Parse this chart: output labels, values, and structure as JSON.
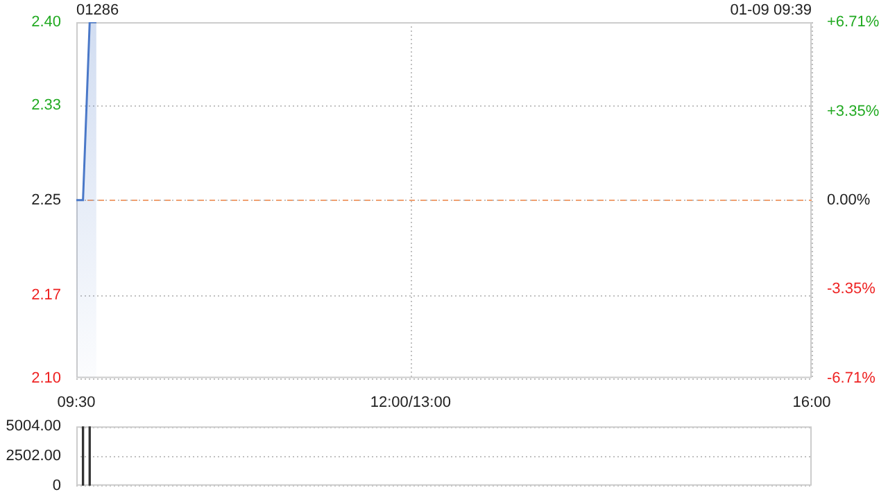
{
  "chart_data": [
    {
      "type": "area",
      "title": "01286",
      "annotations": [
        "01-09 09:39"
      ],
      "categories": [
        "09:30",
        null,
        null,
        null,
        null,
        null,
        null,
        null,
        null,
        null,
        null,
        null,
        null,
        null,
        null,
        null,
        null,
        null,
        null,
        null,
        null,
        null,
        null,
        null,
        null,
        null,
        null,
        null,
        null,
        null,
        null,
        null,
        null,
        null,
        null,
        null,
        null,
        null,
        null,
        null,
        null,
        null,
        null,
        null,
        null,
        null,
        null,
        null,
        null,
        null,
        "12:00/13:00",
        null,
        null,
        null,
        null,
        null,
        null,
        null,
        null,
        null,
        null,
        null,
        null,
        null,
        null,
        null,
        null,
        null,
        null,
        null,
        null,
        null,
        null,
        null,
        null,
        null,
        null,
        null,
        null,
        null,
        null,
        null,
        null,
        null,
        null,
        null,
        null,
        null,
        null,
        null,
        null,
        null,
        null,
        null,
        null,
        null,
        null,
        null,
        null,
        null,
        null,
        null,
        null,
        null,
        null,
        null,
        null,
        null,
        null,
        null,
        "16:00"
      ],
      "values": [
        2.25,
        2.25,
        2.4,
        2.4,
        null,
        null,
        null,
        null,
        null,
        null,
        null,
        null,
        null,
        null,
        null,
        null,
        null,
        null,
        null,
        null,
        null,
        null,
        null,
        null,
        null,
        null,
        null,
        null,
        null,
        null,
        null,
        null,
        null,
        null,
        null,
        null,
        null,
        null,
        null,
        null,
        null,
        null,
        null,
        null,
        null,
        null,
        null,
        null,
        null,
        null,
        null,
        null,
        null,
        null,
        null,
        null,
        null,
        null,
        null,
        null,
        null,
        null,
        null,
        null,
        null,
        null,
        null,
        null,
        null,
        null,
        null,
        null,
        null,
        null,
        null,
        null,
        null,
        null,
        null,
        null,
        null,
        null,
        null,
        null,
        null,
        null,
        null,
        null,
        null,
        null,
        null,
        null,
        null,
        null,
        null,
        null,
        null,
        null,
        null,
        null,
        null,
        null,
        null,
        null,
        null,
        null,
        null,
        null,
        null,
        null,
        null
      ],
      "color": "#4a78c8",
      "ylim": [
        2.1,
        2.4
      ],
      "yticks": [
        {
          "value": 2.1,
          "label": "2.10"
        },
        2.17,
        2.25,
        2.33,
        {
          "value": 2.4,
          "label": "2.40"
        }
      ],
      "y2lim": [
        -6.71,
        6.71
      ],
      "y2ticks": [
        {
          "value": -6.71,
          "label": "-6.71%"
        },
        {
          "value": -3.35,
          "label": "-3.35%"
        },
        {
          "value": 0,
          "label": "0.00%"
        },
        {
          "value": 3.35,
          "label": "+3.35%"
        },
        {
          "value": 6.71,
          "label": "+6.71%"
        }
      ],
      "ref_lines": [
        {
          "axis": "y",
          "value": 2.25,
          "color": "#f0a070",
          "line_style": "dashed"
        }
      ],
      "grid": true
    },
    {
      "type": "bar",
      "categories": [
        null,
        null,
        null,
        null,
        null,
        null,
        null,
        null,
        null,
        null,
        null,
        null,
        null,
        null,
        null,
        null,
        null,
        null,
        null,
        null,
        null,
        null,
        null,
        null,
        null,
        null,
        null,
        null,
        null,
        null,
        null,
        null,
        null,
        null,
        null,
        null,
        null,
        null,
        null,
        null,
        null,
        null,
        null,
        null,
        null,
        null,
        null,
        null,
        null,
        null,
        null,
        null,
        null,
        null,
        null,
        null,
        null,
        null,
        null,
        null,
        null,
        null,
        null,
        null,
        null,
        null,
        null,
        null,
        null,
        null,
        null,
        null,
        null,
        null,
        null,
        null,
        null,
        null,
        null,
        null,
        null,
        null,
        null,
        null,
        null,
        null,
        null,
        null,
        null,
        null,
        null,
        null,
        null,
        null,
        null,
        null,
        null,
        null,
        null,
        null,
        null,
        null,
        null,
        null,
        null,
        null,
        null,
        null,
        null,
        null,
        null
      ],
      "values": [
        null,
        5000,
        5000,
        null,
        null,
        null,
        null,
        null,
        null,
        null,
        null,
        null,
        null,
        null,
        null,
        null,
        null,
        null,
        null,
        null,
        null,
        null,
        null,
        null,
        null,
        null,
        null,
        null,
        null,
        null,
        null,
        null,
        null,
        null,
        null,
        null,
        null,
        null,
        null,
        null,
        null,
        null,
        null,
        null,
        null,
        null,
        null,
        null,
        null,
        null,
        null,
        null,
        null,
        null,
        null,
        null,
        null,
        null,
        null,
        null,
        null,
        null,
        null,
        null,
        null,
        null,
        null,
        null,
        null,
        null,
        null,
        null,
        null,
        null,
        null,
        null,
        null,
        null,
        null,
        null,
        null,
        null,
        null,
        null,
        null,
        null,
        null,
        null,
        null,
        null,
        null,
        null,
        null,
        null,
        null,
        null,
        null,
        null,
        null,
        null,
        null,
        null,
        null,
        null,
        null,
        null,
        null,
        null,
        null,
        null,
        null
      ],
      "color": "#333333",
      "ylim": [
        0,
        5004
      ],
      "yticks": [
        0,
        {
          "value": 2502,
          "label": "2502.00"
        },
        {
          "value": 5004,
          "label": "5004.00"
        }
      ],
      "grid": "y",
      "tick_labels": "y"
    }
  ]
}
